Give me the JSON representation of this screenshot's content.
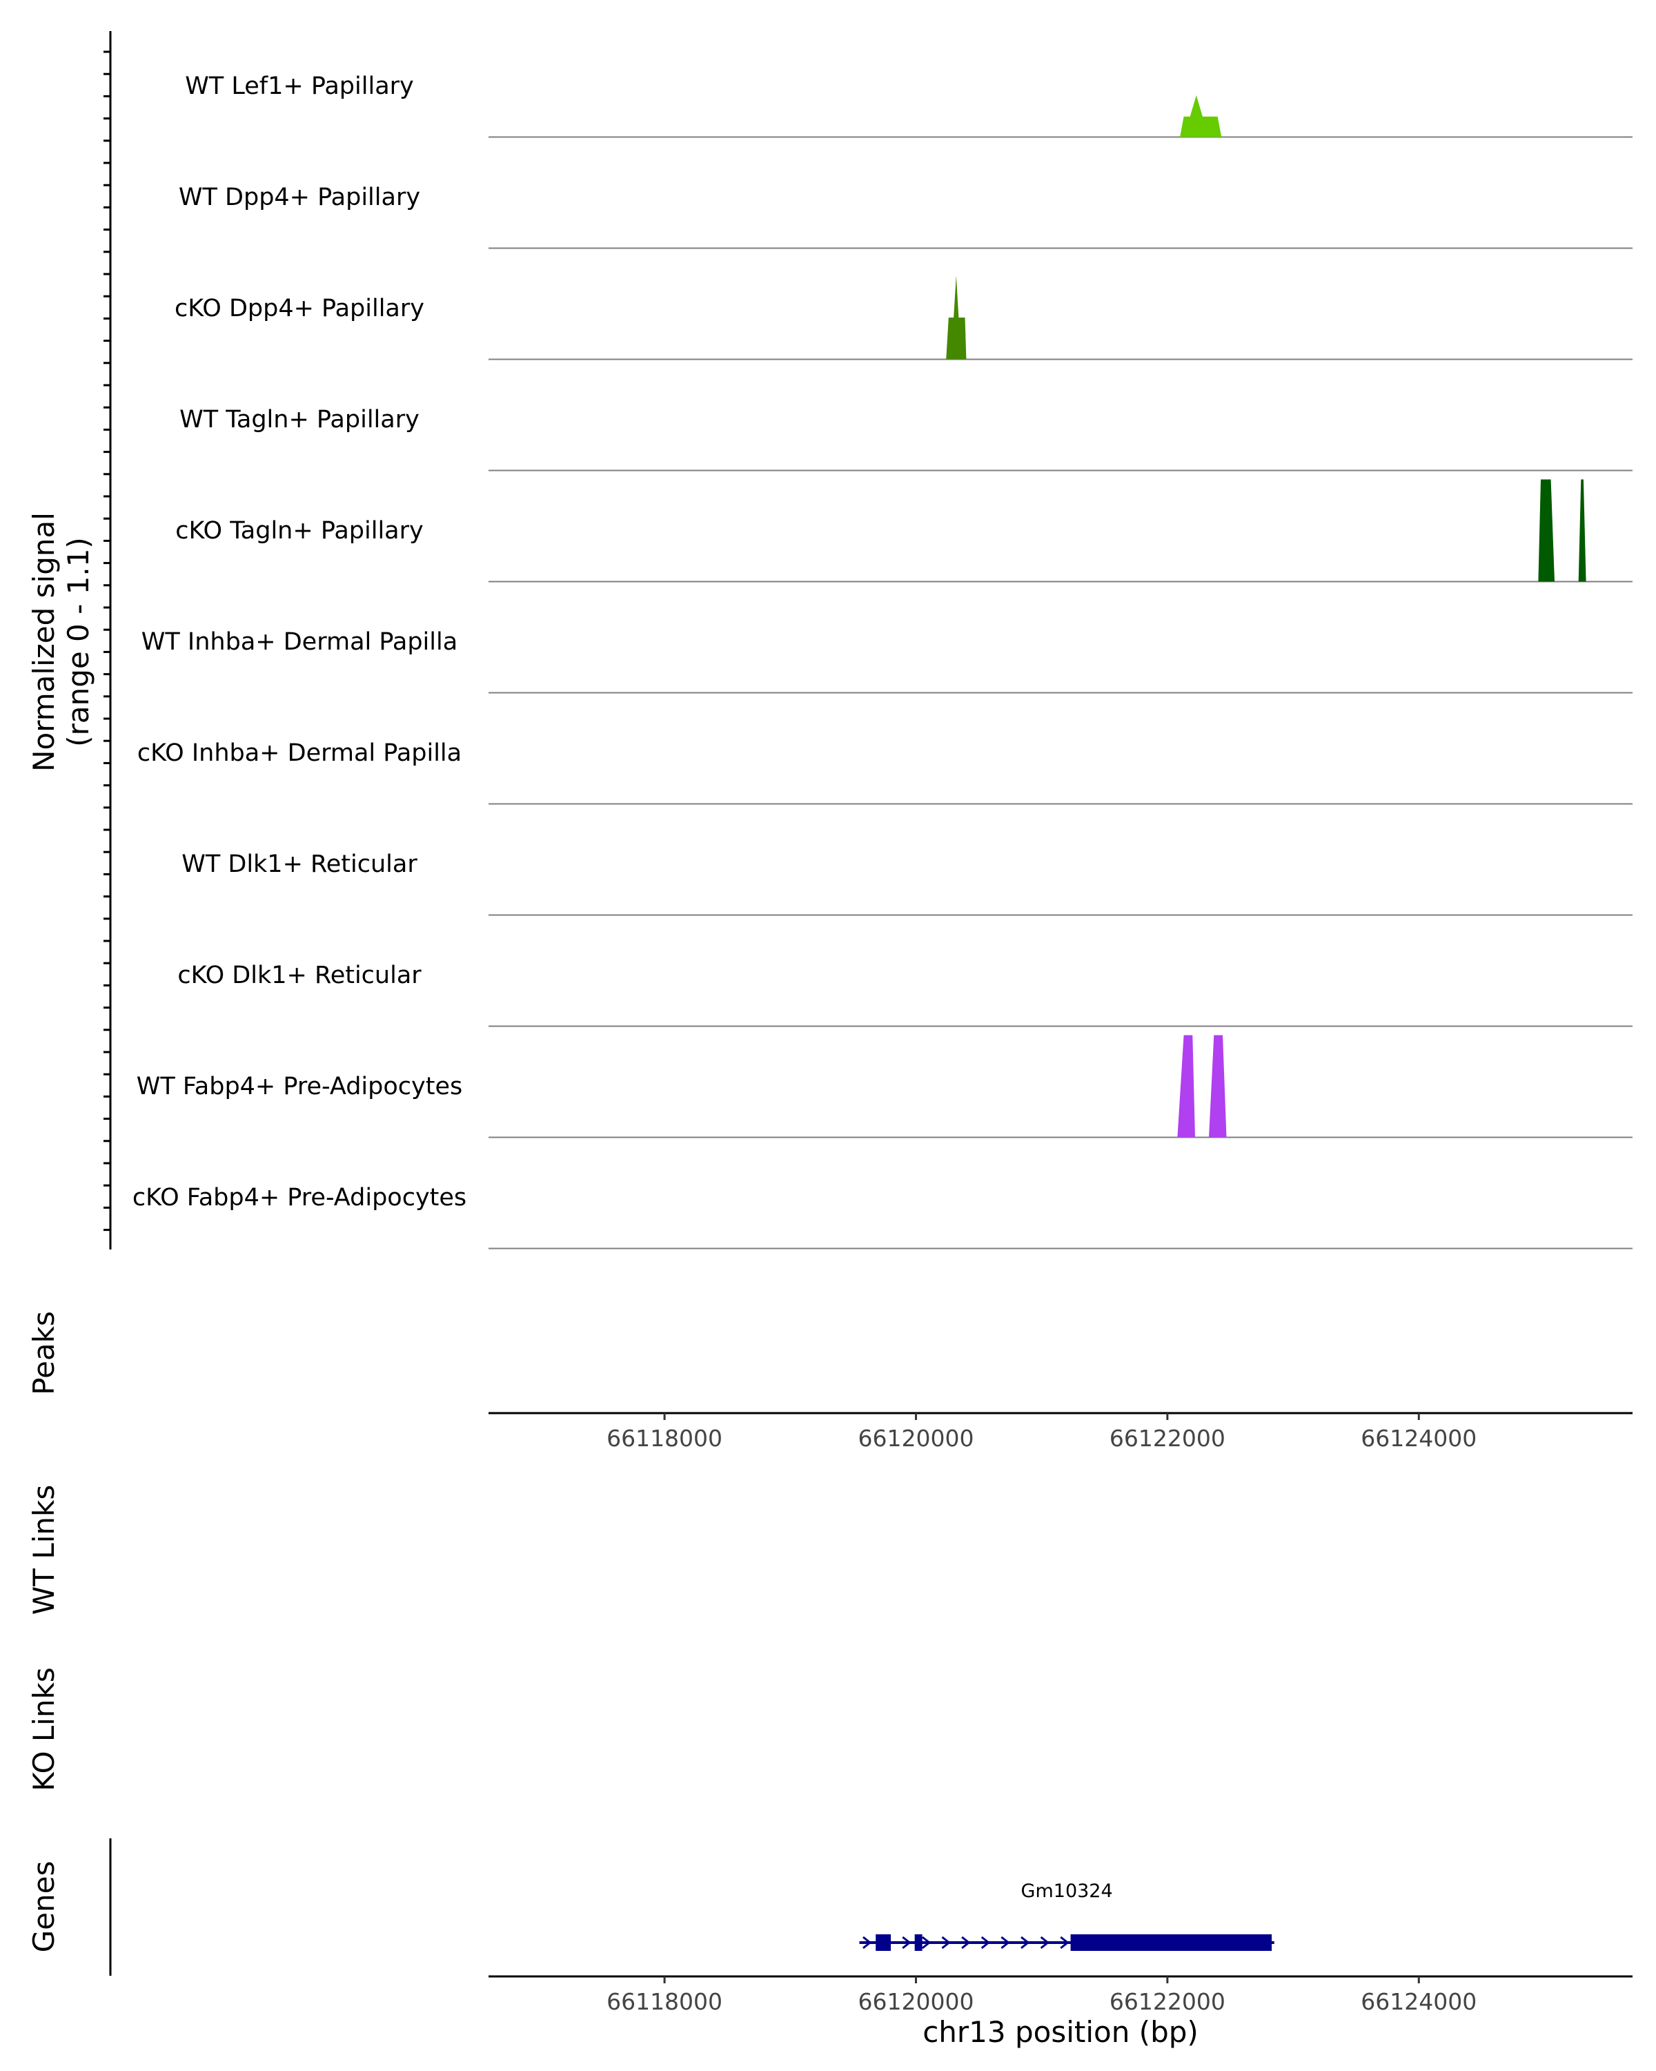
{
  "chart_data": {
    "type": "area",
    "chromosome": "chr13",
    "xlim": [
      66116600,
      66125700
    ],
    "ylim": [
      0,
      1.1
    ],
    "xlabel": "chr13 position (bp)",
    "ylabel": "Normalized signal",
    "ylabel_range": "(range 0 - 1.1)",
    "x_ticks": [
      "66118000",
      "66120000",
      "66122000",
      "66124000"
    ],
    "x_tick_values": [
      66118000,
      66120000,
      66122000,
      66124000
    ],
    "tracks": [
      {
        "name": "WT Lef1+ Papillary",
        "color": "#66cc00",
        "x": [
          66122100,
          66122130,
          66122180,
          66122230,
          66122280,
          66122330,
          66122400,
          66122430
        ],
        "y": [
          0,
          0.22,
          0.22,
          0.45,
          0.22,
          0.22,
          0.22,
          0
        ]
      },
      {
        "name": "WT Dpp4+ Papillary",
        "color": "#55aa00",
        "x": [],
        "y": []
      },
      {
        "name": "cKO Dpp4+ Papillary",
        "color": "#448800",
        "x": [
          66120240,
          66120260,
          66120300,
          66120320,
          66120340,
          66120380,
          66120390,
          66120400
        ],
        "y": [
          0,
          0.45,
          0.45,
          0.9,
          0.45,
          0.45,
          0.45,
          0
        ]
      },
      {
        "name": "WT Tagln+ Papillary",
        "color": "#2f7a00",
        "x": [],
        "y": []
      },
      {
        "name": "cKO Tagln+ Papillary",
        "color": "#005a00",
        "x": [
          66124950,
          66124970,
          66125050,
          66125080,
          66125270,
          66125290,
          66125310,
          66125330
        ],
        "y": [
          0,
          1.1,
          1.1,
          0,
          0,
          1.1,
          1.1,
          0
        ]
      },
      {
        "name": "WT Inhba+ Dermal Papilla",
        "color": "#9933ff",
        "x": [],
        "y": []
      },
      {
        "name": "cKO Inhba+ Dermal Papilla",
        "color": "#9933ff",
        "x": [],
        "y": []
      },
      {
        "name": "WT Dlk1+ Reticular",
        "color": "#9933ff",
        "x": [],
        "y": []
      },
      {
        "name": "cKO Dlk1+ Reticular",
        "color": "#9933ff",
        "x": [],
        "y": []
      },
      {
        "name": "WT Fabp4+ Pre-Adipocytes",
        "color": "#b040f0",
        "x": [
          66122080,
          66122130,
          66122200,
          66122220,
          66122330,
          66122370,
          66122440,
          66122470
        ],
        "y": [
          0,
          1.1,
          1.1,
          0,
          0,
          1.1,
          1.1,
          0
        ]
      },
      {
        "name": "cKO Fabp4+ Pre-Adipocytes",
        "color": "#b040f0",
        "x": [],
        "y": []
      }
    ],
    "panels": {
      "peaks_label": "Peaks",
      "wt_links_label": "WT Links",
      "ko_links_label": "KO Links",
      "genes_label": "Genes"
    },
    "gene": {
      "name": "Gm10324",
      "strand": "+",
      "color": "#00008b",
      "start": 66119550,
      "end": 66122850,
      "exons": [
        [
          66119680,
          66119800
        ],
        [
          66119990,
          66120050
        ],
        [
          66121230,
          66122830
        ]
      ]
    }
  }
}
